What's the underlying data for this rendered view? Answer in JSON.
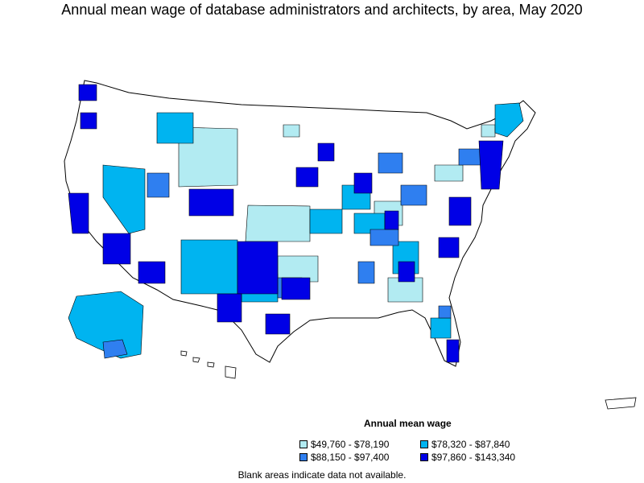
{
  "title": "Annual mean wage of database administrators and architects, by area, May 2020",
  "legend": {
    "title": "Annual mean wage",
    "items": [
      {
        "label": "$49,760 - $78,190",
        "color": "#b2ebf2"
      },
      {
        "label": "$78,320 - $87,840",
        "color": "#00b4f0"
      },
      {
        "label": "$88,150 - $97,400",
        "color": "#2f7ff0"
      },
      {
        "label": "$97,860 - $143,340",
        "color": "#0000e6"
      }
    ]
  },
  "note": "Blank areas indicate data not available.",
  "colors": {
    "outline": "#000000",
    "blank": "#ffffff"
  }
}
